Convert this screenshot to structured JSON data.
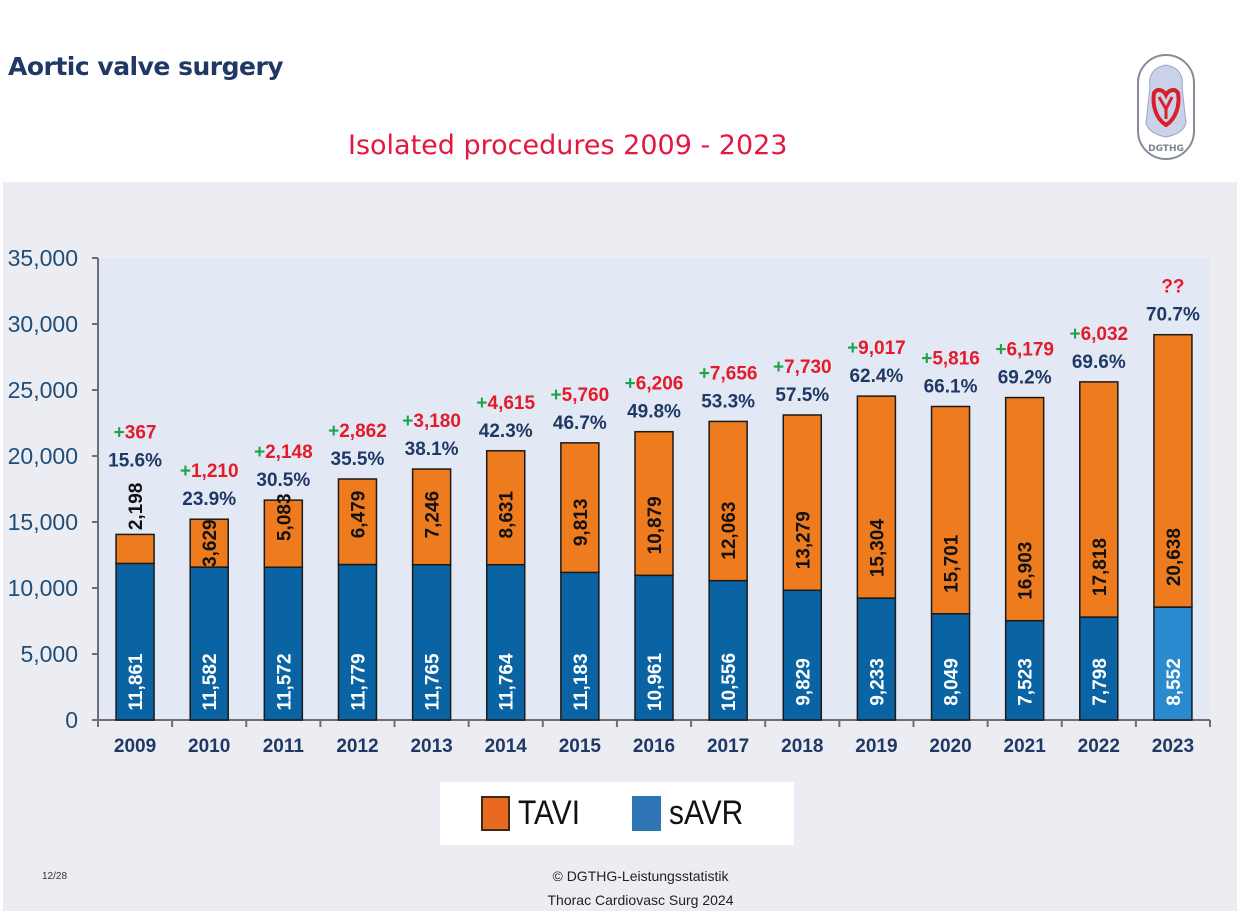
{
  "header": {
    "title": "Aortic valve surgery",
    "logo": {
      "icon": "dgthg-heart-logo-icon",
      "text": "DGTHG"
    }
  },
  "chart_data": {
    "type": "bar",
    "stacked": true,
    "title": "Isolated procedures 2009 - 2023",
    "xlabel": "",
    "ylabel": "",
    "ylim": [
      0,
      35000
    ],
    "yticks": [
      0,
      5000,
      10000,
      15000,
      20000,
      25000,
      30000,
      35000
    ],
    "ytick_labels": [
      "0",
      "5,000",
      "10,000",
      "15,000",
      "20,000",
      "25,000",
      "30,000",
      "35,000"
    ],
    "grid": false,
    "categories": [
      "2009",
      "2010",
      "2011",
      "2012",
      "2013",
      "2014",
      "2015",
      "2016",
      "2017",
      "2018",
      "2019",
      "2020",
      "2021",
      "2022",
      "2023"
    ],
    "series": [
      {
        "name": "sAVR",
        "color": "#0a64a4",
        "highlight_last_color": "#2a8ad0",
        "values": [
          11861,
          11582,
          11572,
          11779,
          11765,
          11764,
          11183,
          10961,
          10556,
          9829,
          9233,
          8049,
          7523,
          7798,
          8552
        ],
        "labels": [
          "11,861",
          "11,582",
          "11,572",
          "11,779",
          "11,765",
          "11,764",
          "11,183",
          "10,961",
          "10,556",
          "9,829",
          "9,233",
          "8,049",
          "7,523",
          "7,798",
          "8,552"
        ]
      },
      {
        "name": "TAVI",
        "color": "#ef7b1f",
        "values": [
          2198,
          3629,
          5083,
          6479,
          7246,
          8631,
          9813,
          10879,
          12063,
          13279,
          15304,
          15701,
          16903,
          17818,
          20638
        ],
        "labels": [
          "2,198",
          "3,629",
          "5,083",
          "6,479",
          "7,246",
          "8,631",
          "9,813",
          "10,879",
          "12,063",
          "13,279",
          "15,304",
          "15,701",
          "16,903",
          "17,818",
          "20,638"
        ]
      }
    ],
    "tavi_share_labels": [
      "15.6%",
      "23.9%",
      "30.5%",
      "35.5%",
      "38.1%",
      "42.3%",
      "46.7%",
      "49.8%",
      "53.3%",
      "57.5%",
      "62.4%",
      "66.1%",
      "69.2%",
      "69.6%",
      "70.7%"
    ],
    "annotations": {
      "tavi_plus_sign": "+",
      "tavi_plus_values": [
        "367",
        "1,210",
        "2,148",
        "2,862",
        "3,180",
        "4,615",
        "5,760",
        "6,206",
        "7,656",
        "7,730",
        "9,017",
        "5,816",
        "6,179",
        "6,032",
        "??"
      ],
      "plus_color": "#1fa24a",
      "value_color": "#e41b2a",
      "share_color": "#1f3864"
    },
    "legend": {
      "placement": "bottom-center",
      "items": [
        {
          "label": "TAVI",
          "color": "#e8691f"
        },
        {
          "label": "sAVR",
          "color": "#2e75b6"
        }
      ]
    }
  },
  "footer": {
    "slide_number": "12/28",
    "source_line1": "© DGTHG-Leistungsstatistik",
    "source_line2": "Thorac Cardiovasc Surg 2024"
  }
}
